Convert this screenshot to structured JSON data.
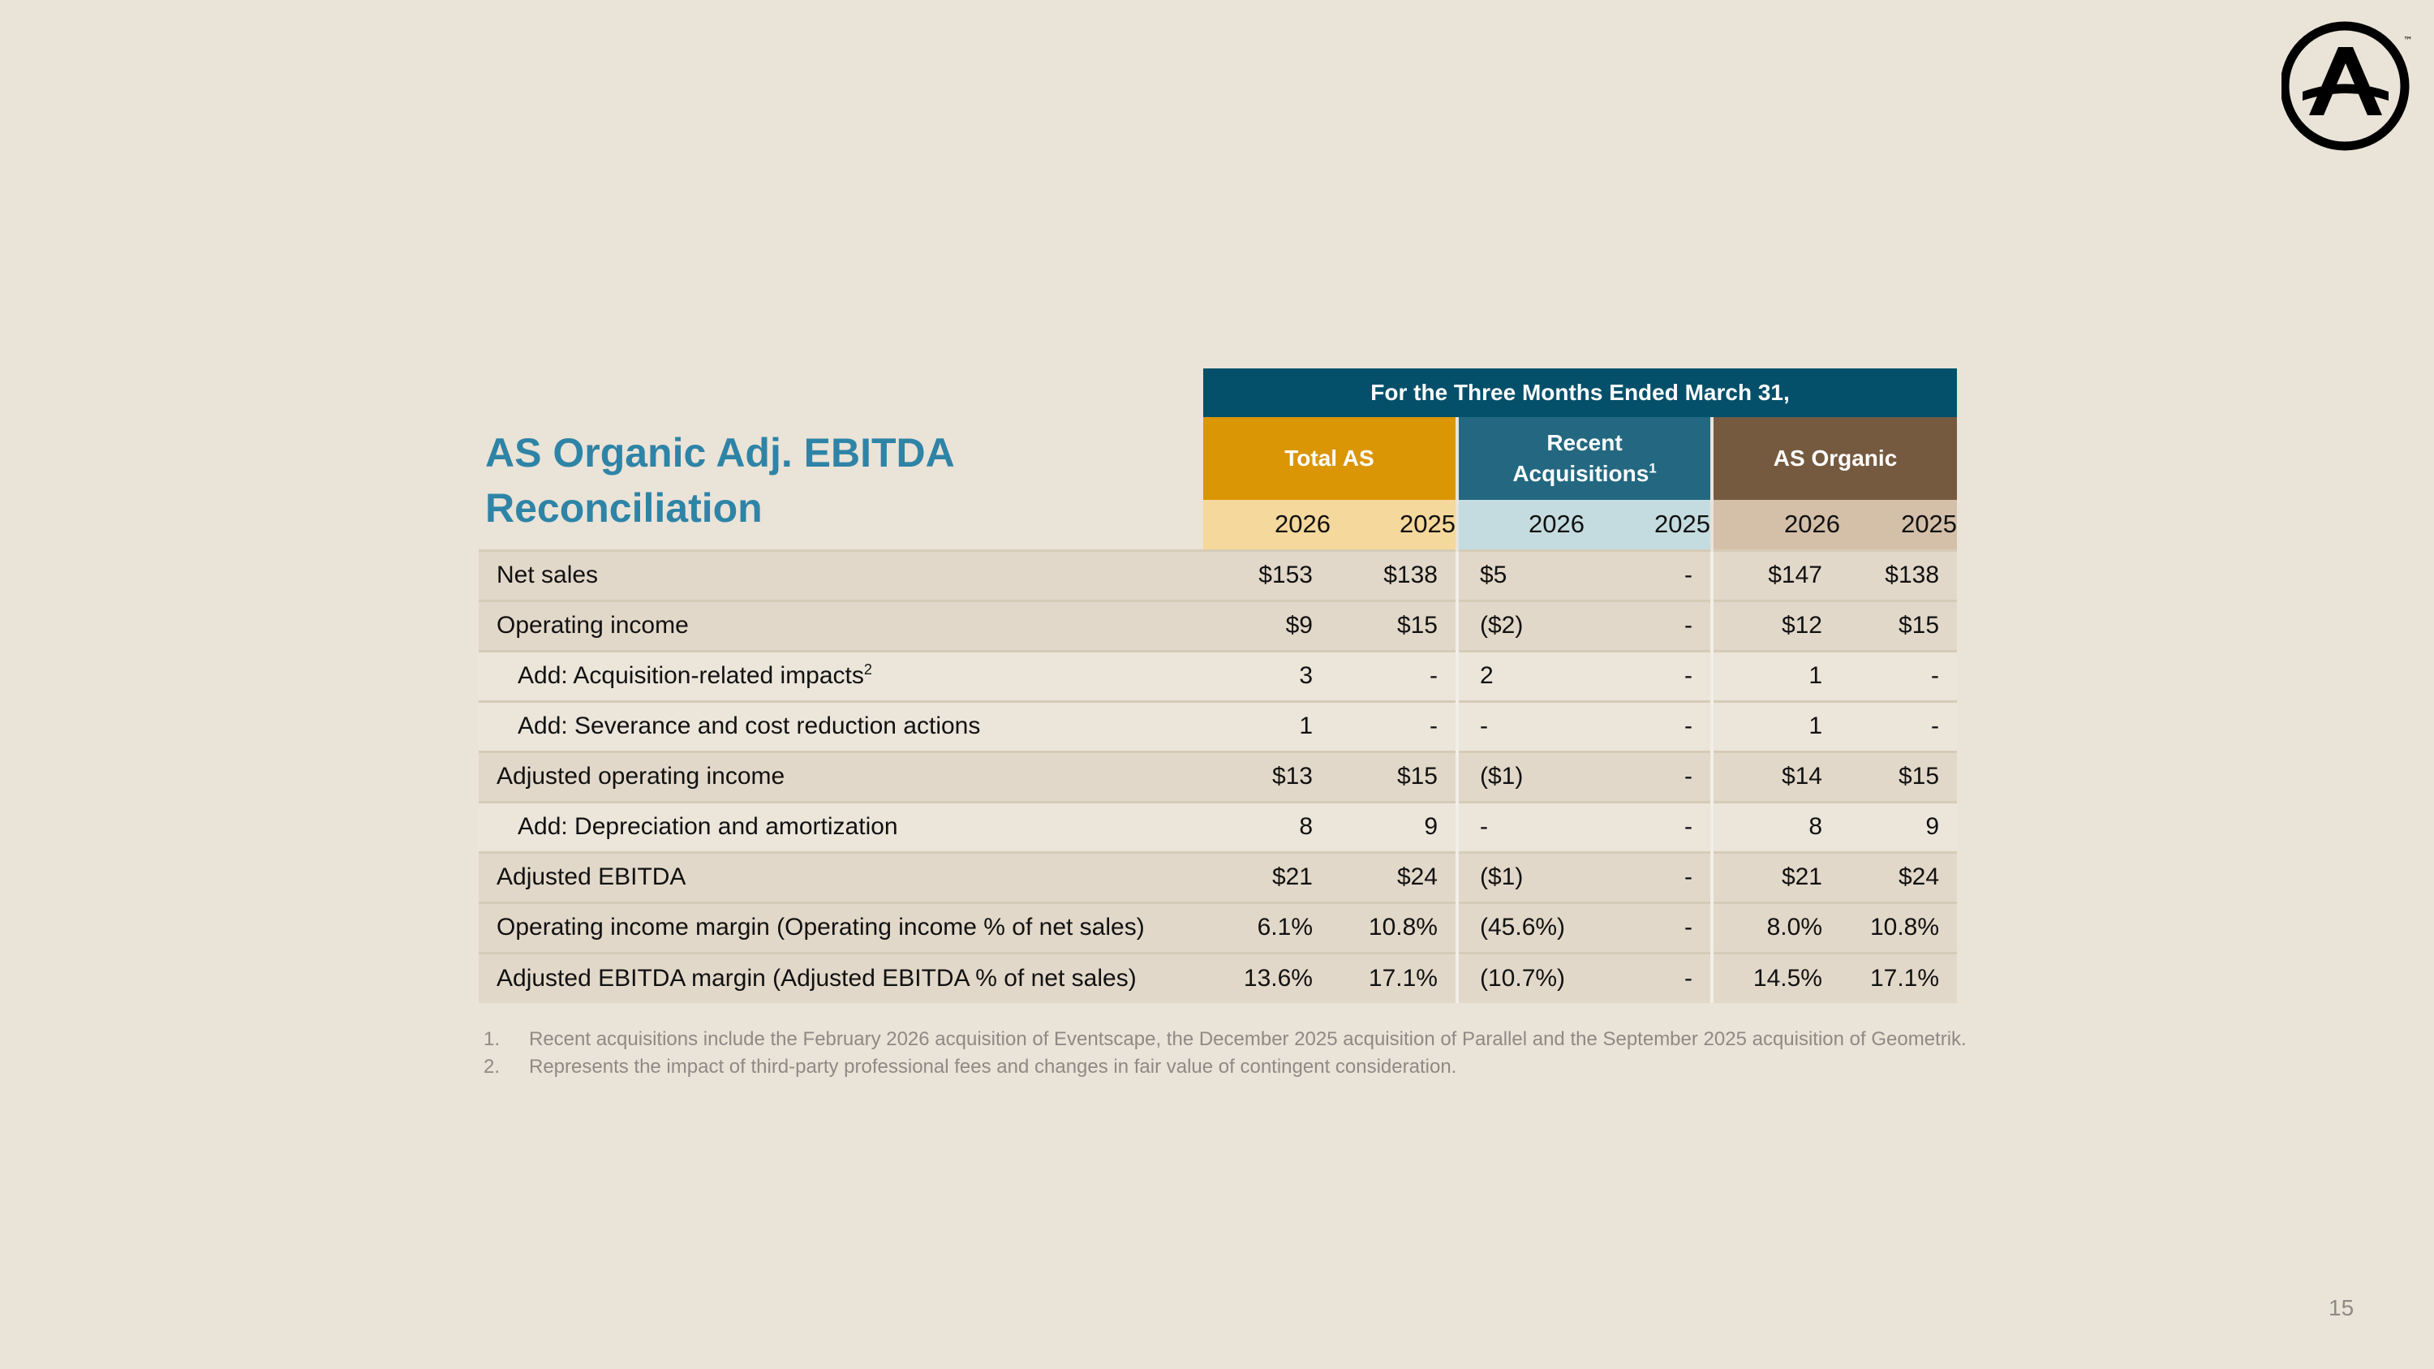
{
  "title": "AS Organic Adj. EBITDA Reconciliation",
  "logo": {
    "icon": "circle-a-logo-icon",
    "mark": "™"
  },
  "table": {
    "period_header": "For the Three Months Ended March 31,",
    "groups": [
      {
        "label": "Total AS",
        "sup": "",
        "color": "#DA9605"
      },
      {
        "label": "Recent Acquisitions",
        "sup": "1",
        "color": "#236880"
      },
      {
        "label": "AS Organic",
        "sup": "",
        "color": "#755A40"
      }
    ],
    "years": [
      "2026",
      "2025",
      "2026",
      "2025",
      "2026",
      "2025"
    ],
    "rows": [
      {
        "label": "Net sales",
        "sup": "",
        "values": [
          "$153",
          "$138",
          "$5",
          "-",
          "$147",
          "$138"
        ]
      },
      {
        "label": "Operating income",
        "sup": "",
        "values": [
          "$9",
          "$15",
          "($2)",
          "-",
          "$12",
          "$15"
        ]
      },
      {
        "label": "Add: Acquisition-related impacts",
        "sup": "2",
        "values": [
          "3",
          "-",
          "2",
          "-",
          "1",
          "-"
        ]
      },
      {
        "label": "Add: Severance and cost reduction actions",
        "sup": "",
        "values": [
          "1",
          "-",
          "-",
          "-",
          "1",
          "-"
        ]
      },
      {
        "label": "Adjusted operating income",
        "sup": "",
        "values": [
          "$13",
          "$15",
          "($1)",
          "-",
          "$14",
          "$15"
        ]
      },
      {
        "label": "Add: Depreciation and amortization",
        "sup": "",
        "values": [
          "8",
          "9",
          "-",
          "-",
          "8",
          "9"
        ]
      },
      {
        "label": "Adjusted EBITDA",
        "sup": "",
        "values": [
          "$21",
          "$24",
          "($1)",
          "-",
          "$21",
          "$24"
        ]
      },
      {
        "label": "Operating income margin (Operating income % of net sales)",
        "sup": "",
        "values": [
          "6.1%",
          "10.8%",
          "(45.6%)",
          "-",
          "8.0%",
          "10.8%"
        ]
      },
      {
        "label": "Adjusted EBITDA margin (Adjusted EBITDA % of net sales)",
        "sup": "",
        "values": [
          "13.6%",
          "17.1%",
          "(10.7%)",
          "-",
          "14.5%",
          "17.1%"
        ]
      }
    ]
  },
  "footnotes": [
    {
      "num": "1.",
      "text": "Recent acquisitions include the February 2026 acquisition of Eventscape, the December 2025 acquisition of Parallel and the September 2025 acquisition of Geometrik."
    },
    {
      "num": "2.",
      "text": "Represents the impact of third-party professional fees and changes in fair value of contingent consideration."
    }
  ],
  "page_number": "15"
}
